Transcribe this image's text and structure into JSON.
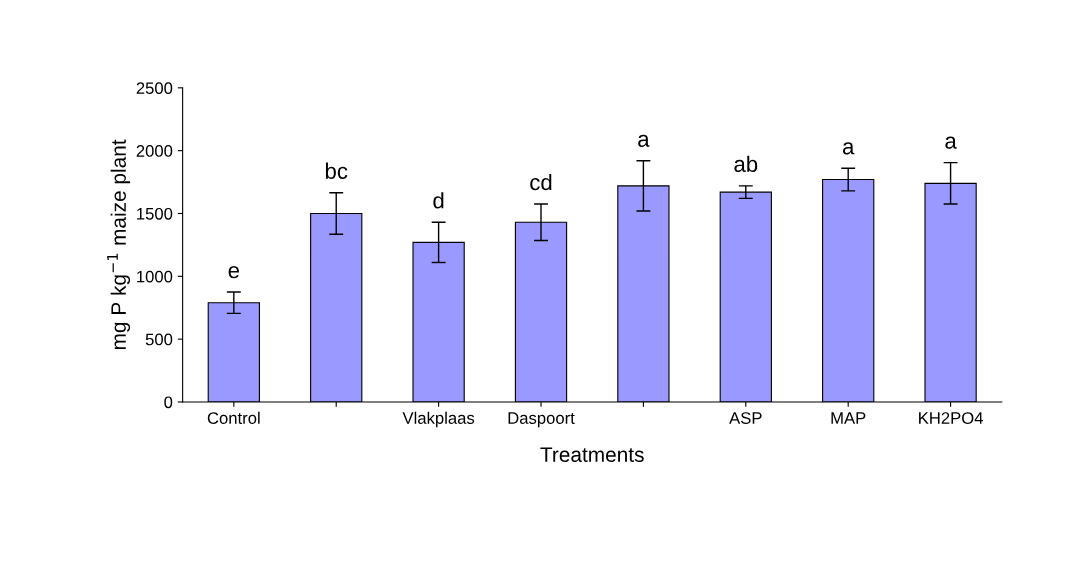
{
  "chart_data": {
    "type": "bar",
    "xlabel": "Treatments",
    "ylabel": "mg P kg$^{−1}$ maize plant",
    "categories": [
      "Control",
      null,
      "Vlakplaas",
      "Daspoort",
      null,
      "ASP",
      "MAP",
      "KH2PO4"
    ],
    "values": [
      790,
      1500,
      1270,
      1430,
      1720,
      1670,
      1770,
      1740
    ],
    "errors": [
      85,
      165,
      160,
      145,
      200,
      50,
      90,
      165
    ],
    "color": "#9999ff",
    "annotations": [
      "e",
      "bc",
      "d",
      "cd",
      "a",
      "ab",
      "a",
      "a"
    ],
    "ylim": [
      0,
      2500
    ],
    "yticks": [
      0,
      500,
      1000,
      1500,
      2000,
      2500
    ],
    "grid": false,
    "legend": false
  }
}
